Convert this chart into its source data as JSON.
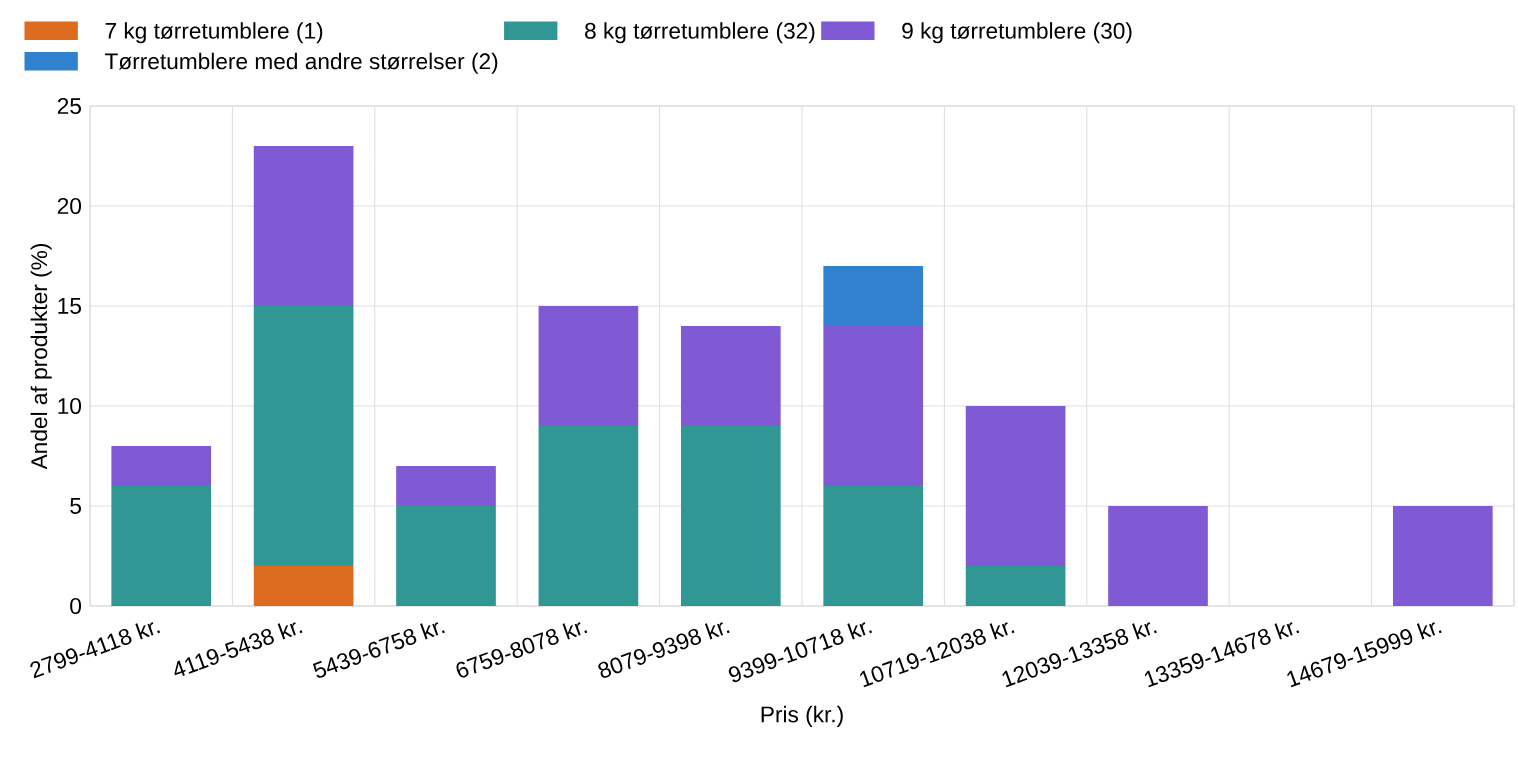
{
  "chart_data": {
    "type": "bar",
    "stacked": true,
    "xlabel": "Pris (kr.)",
    "ylabel": "Andel af produkter (%)",
    "categories": [
      "2799-4118 kr.",
      "4119-5438 kr.",
      "5439-6758 kr.",
      "6759-8078 kr.",
      "8079-9398 kr.",
      "9399-10718 kr.",
      "10719-12038 kr.",
      "12039-13358 kr.",
      "13359-14678 kr.",
      "14679-15999 kr."
    ],
    "series": [
      {
        "name": "7 kg tørretumblere (1)",
        "color": "#dd6b20",
        "values": [
          0,
          2,
          0,
          0,
          0,
          0,
          0,
          0,
          0,
          0
        ]
      },
      {
        "name": "8 kg tørretumblere (32)",
        "color": "#319795",
        "values": [
          6,
          13,
          5,
          9,
          9,
          6,
          2,
          0,
          0,
          0
        ]
      },
      {
        "name": "9 kg tørretumblere (30)",
        "color": "#805ad5",
        "values": [
          2,
          8,
          2,
          6,
          5,
          8,
          8,
          5,
          0,
          5
        ]
      },
      {
        "name": "Tørretumblere med andre størrelser (2)",
        "color": "#3182ce",
        "values": [
          0,
          0,
          0,
          0,
          0,
          3,
          0,
          0,
          0,
          0
        ]
      }
    ],
    "ylim": [
      0,
      25
    ],
    "yticks": [
      0,
      5,
      10,
      15,
      20,
      25
    ],
    "grid": true,
    "legend": "top left"
  }
}
